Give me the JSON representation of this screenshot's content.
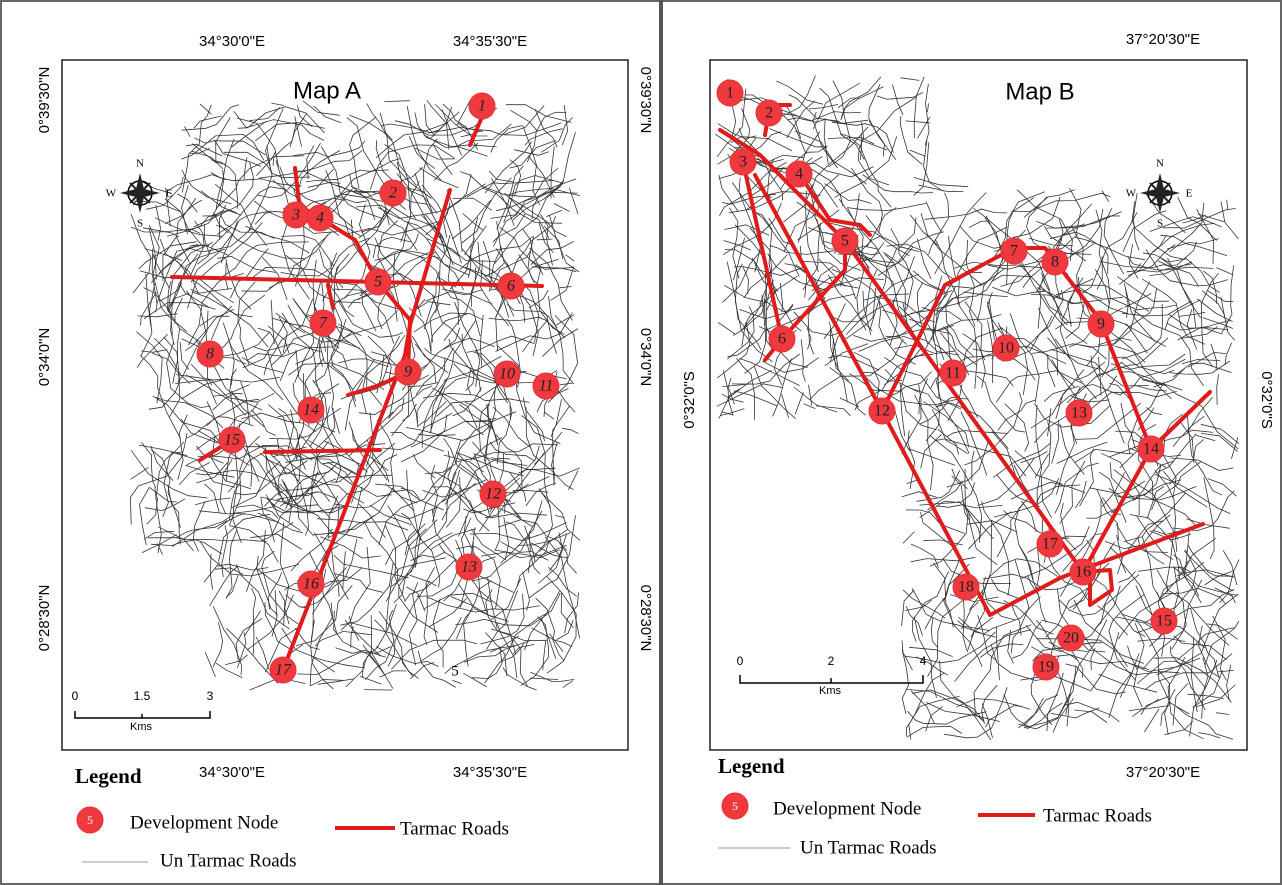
{
  "maps": [
    {
      "title": "Map A",
      "top_labels": [
        "34°30'0\"E",
        "34°35'30\"E"
      ],
      "bottom_labels": [
        "34°30'0\"E",
        "34°35'30\"E"
      ],
      "left_labels": [
        "0°39'30\"N",
        "0°34'0\"N",
        "0°28'30\"N"
      ],
      "right_labels": [
        "0°39'30\"N",
        "0°34'0\"N",
        "0°28'30\"N"
      ],
      "compass": [
        "N",
        "E",
        "S",
        "W"
      ],
      "scale": [
        "0",
        "1.5",
        "3"
      ],
      "scale_unit": "Kms",
      "stray_label": "5",
      "nodes": [
        "1",
        "2",
        "3",
        "4",
        "5",
        "6",
        "7",
        "8",
        "9",
        "10",
        "11",
        "12",
        "13",
        "14",
        "15",
        "16",
        "17"
      ],
      "legend": {
        "title": "Legend",
        "node_symbol": "5",
        "node": "Development Node",
        "tarmac": "Tarmac Roads",
        "untarmac": "Un Tarmac Roads"
      }
    },
    {
      "title": "Map B",
      "top_labels": [
        "37°20'30\"E"
      ],
      "bottom_labels": [
        "37°20'30\"E"
      ],
      "left_labels": [
        "0°32'0\"S"
      ],
      "right_labels": [
        "0°32'0\"S"
      ],
      "compass": [
        "N",
        "E",
        "S",
        "W"
      ],
      "scale": [
        "0",
        "2",
        "4"
      ],
      "scale_unit": "Kms",
      "nodes": [
        "1",
        "2",
        "3",
        "4",
        "5",
        "6",
        "7",
        "8",
        "9",
        "10",
        "11",
        "12",
        "13",
        "14",
        "15",
        "16",
        "17",
        "18",
        "19",
        "20"
      ],
      "legend": {
        "title": "Legend",
        "node_symbol": "5",
        "node": "Development Node",
        "tarmac": "Tarmac Roads",
        "untarmac": "Un Tarmac Roads"
      }
    }
  ]
}
